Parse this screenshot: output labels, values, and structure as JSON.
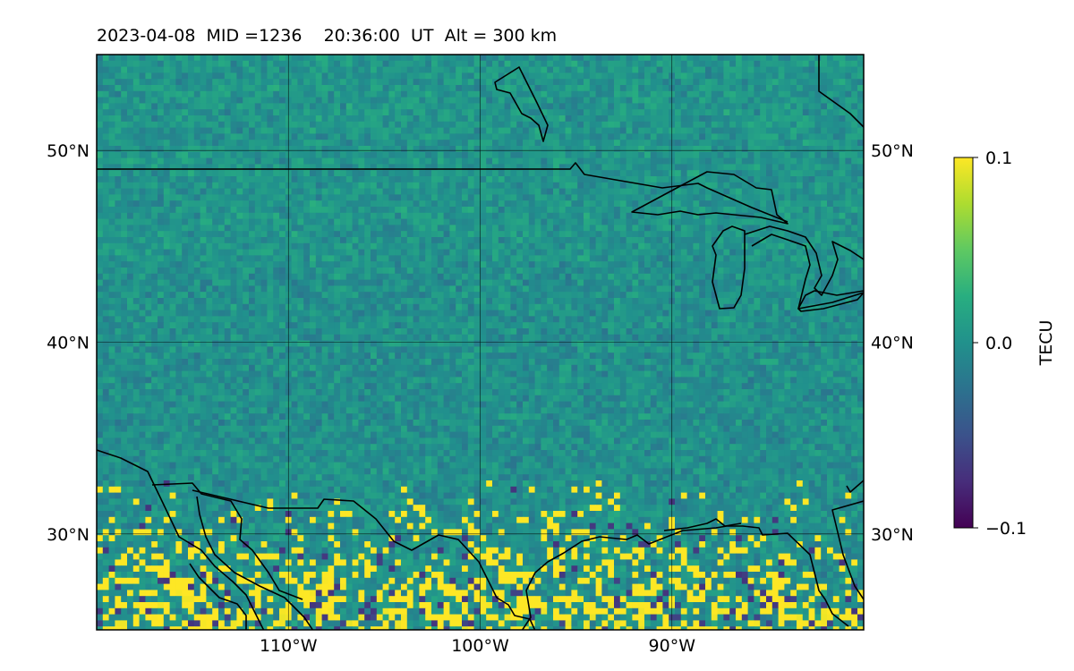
{
  "title": "2023-04-08  MID =1236    20:36:00  UT  Alt = 300 km",
  "map": {
    "extent": {
      "lon_min": -120,
      "lon_max": -80,
      "lat_min": 25,
      "lat_max": 55
    },
    "meridians": [
      {
        "lon": -110,
        "label": "110°W"
      },
      {
        "lon": -100,
        "label": "100°W"
      },
      {
        "lon": -90,
        "label": "90°W"
      }
    ],
    "parallels": [
      {
        "lat": 50,
        "label": "50°N"
      },
      {
        "lat": 40,
        "label": "40°N"
      },
      {
        "lat": 30,
        "label": "30°N"
      }
    ],
    "grid": true
  },
  "colorbar": {
    "label": "TECU",
    "colormap": "viridis",
    "vmin": -0.1,
    "vmax": 0.1,
    "ticks": [
      {
        "value": 0.1,
        "label": "0.1"
      },
      {
        "value": 0.0,
        "label": "0.0"
      },
      {
        "value": -0.1,
        "label": "−0.1"
      }
    ]
  },
  "colors": {
    "background": "#ffffff",
    "coastline": "#000000",
    "grid": "#000000"
  }
}
